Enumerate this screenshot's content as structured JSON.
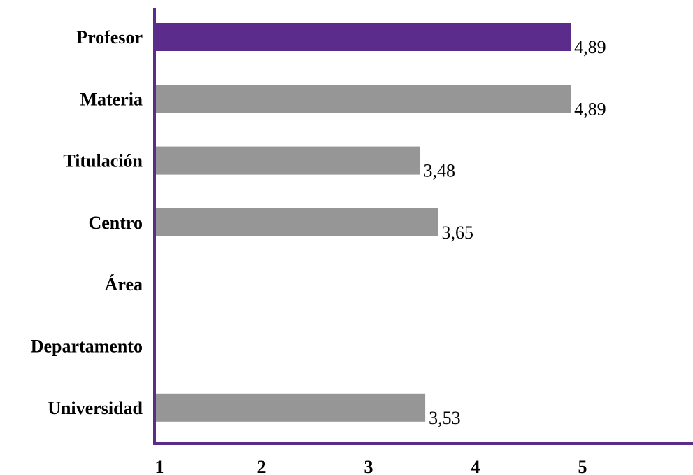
{
  "chart_data": {
    "type": "bar",
    "orientation": "horizontal",
    "categories": [
      "Profesor",
      "Materia",
      "Titulación",
      "Centro",
      "Área",
      "Departamento",
      "Universidad"
    ],
    "values": [
      4.89,
      4.89,
      3.48,
      3.65,
      null,
      null,
      3.53
    ],
    "value_labels": [
      "4,89",
      "4,89",
      "3,48",
      "3,65",
      "",
      "",
      "3,53"
    ],
    "highlight_category": "Profesor",
    "xlim": [
      1,
      5.85
    ],
    "xticks": [
      1,
      2,
      3,
      4,
      5
    ],
    "xtick_labels": [
      "1",
      "2",
      "3",
      "4",
      "5"
    ],
    "grid": false,
    "title": "",
    "xlabel": "",
    "ylabel": "",
    "colors": {
      "highlight": "#5b2c8c",
      "bar": "#969696",
      "axis": "#5b2c8c"
    }
  }
}
